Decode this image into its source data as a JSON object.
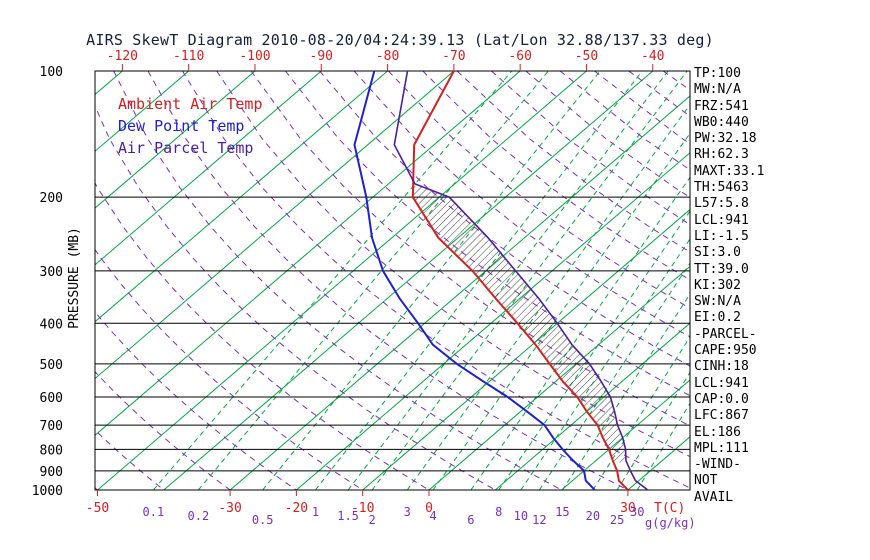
{
  "title": "AIRS SkewT Diagram 2010-08-20/04:24:39.13 (Lat/Lon 32.88/137.33 deg)",
  "legend": [
    {
      "label": "Ambient Air Temp",
      "color": "#d42020"
    },
    {
      "label": "Dew Point Temp",
      "color": "#2020cc"
    },
    {
      "label": "Air Parcel Temp",
      "color": "#4b1f9e"
    }
  ],
  "stats_panel": {
    "lines": [
      "TP:100",
      "MW:N/A",
      "FRZ:541",
      "WB0:440",
      "PW:32.18",
      "RH:62.3",
      "MAXT:33.1",
      "TH:5463",
      "L57:5.8",
      "LCL:941",
      "LI:-1.5",
      "SI:3.0",
      "TT:39.0",
      "KI:302",
      "SW:N/A",
      "EI:0.2",
      "-PARCEL-",
      "CAPE:950",
      "CINH:18",
      "LCL:941",
      "CAP:0.0",
      "LFC:867",
      "EL:186",
      "MPL:111",
      "-WIND-",
      "NOT",
      "AVAIL"
    ]
  },
  "chart_data": {
    "type": "line",
    "title": "AIRS SkewT Diagram 2010-08-20/04:24:39.13 (Lat/Lon 32.88/137.33 deg)",
    "x_axis": {
      "label": "T(C)",
      "skewed": true,
      "top_tick_labels_c": [
        -120,
        -110,
        -100,
        -90,
        -80,
        -70,
        -60,
        -50,
        -40
      ],
      "bottom_tick_labels_c": [
        -50,
        -30,
        -20,
        -10,
        0,
        30
      ]
    },
    "y_axis": {
      "label": "PRESSURE (MB)",
      "scale": "log",
      "range_mb": [
        100,
        1000
      ],
      "ticks_mb": [
        100,
        200,
        300,
        400,
        500,
        600,
        700,
        800,
        900,
        1000
      ]
    },
    "secondary_x_axis": {
      "label": "g(g/kg)",
      "mixing_ratio_ticks_g_kg": [
        0.1,
        0.2,
        0.5,
        1,
        1.5,
        2,
        3,
        4,
        6,
        8,
        10,
        12,
        15,
        20,
        25,
        30
      ]
    },
    "background_lines": {
      "isotherms_c": {
        "from": -160,
        "to": 40,
        "step": 10
      },
      "mixing_ratio_g_kg": [
        0.1,
        0.2,
        0.5,
        1,
        1.5,
        2,
        3,
        4,
        6,
        8,
        10,
        12,
        15,
        20,
        25,
        30
      ],
      "dry_adiabats_c": {
        "from": -60,
        "to": 200,
        "step": 10
      }
    },
    "cape_hatch_pressure_range_mb": [
      860,
      188
    ],
    "series": [
      {
        "id": "ambient-air-temp",
        "name": "Ambient Air Temp",
        "color": "#d42020",
        "width": 2,
        "points": [
          [
            1000,
            30
          ],
          [
            950,
            27
          ],
          [
            900,
            25
          ],
          [
            850,
            22.5
          ],
          [
            800,
            20
          ],
          [
            750,
            17
          ],
          [
            700,
            14
          ],
          [
            650,
            10
          ],
          [
            600,
            6
          ],
          [
            550,
            1
          ],
          [
            500,
            -4
          ],
          [
            450,
            -9.5
          ],
          [
            400,
            -16
          ],
          [
            350,
            -23.5
          ],
          [
            300,
            -32
          ],
          [
            250,
            -43
          ],
          [
            200,
            -54
          ],
          [
            150,
            -63
          ],
          [
            100,
            -70
          ]
        ]
      },
      {
        "id": "dew-point-temp",
        "name": "Dew Point Temp",
        "color": "#2020cc",
        "width": 2,
        "points": [
          [
            1000,
            25
          ],
          [
            950,
            22
          ],
          [
            900,
            20
          ],
          [
            850,
            16.5
          ],
          [
            800,
            13
          ],
          [
            750,
            9.5
          ],
          [
            700,
            6
          ],
          [
            650,
            1
          ],
          [
            600,
            -4.5
          ],
          [
            550,
            -11
          ],
          [
            500,
            -18
          ],
          [
            450,
            -25
          ],
          [
            400,
            -31
          ],
          [
            350,
            -38
          ],
          [
            300,
            -45.5
          ],
          [
            250,
            -53
          ],
          [
            200,
            -61
          ],
          [
            150,
            -72
          ],
          [
            100,
            -82
          ]
        ]
      },
      {
        "id": "air-parcel-temp",
        "name": "Air Parcel Temp",
        "color": "#4b1f9e",
        "width": 1.6,
        "points": [
          [
            1000,
            33
          ],
          [
            950,
            29.5
          ],
          [
            900,
            27
          ],
          [
            850,
            24.5
          ],
          [
            800,
            22.5
          ],
          [
            750,
            20
          ],
          [
            700,
            17
          ],
          [
            650,
            14.2
          ],
          [
            600,
            11
          ],
          [
            550,
            6.8
          ],
          [
            500,
            2
          ],
          [
            450,
            -4
          ],
          [
            400,
            -10
          ],
          [
            350,
            -17
          ],
          [
            300,
            -25.5
          ],
          [
            250,
            -35.5
          ],
          [
            200,
            -48.5
          ],
          [
            186,
            -56
          ],
          [
            150,
            -66
          ],
          [
            100,
            -77
          ]
        ]
      }
    ],
    "colors": {
      "isotherm": "#00a843",
      "mixing": "#00a843",
      "adiabat": "#7b2fbe",
      "temp_label": "#d42020",
      "mixing_label": "#7b2fbe",
      "grid": "#000000"
    }
  }
}
